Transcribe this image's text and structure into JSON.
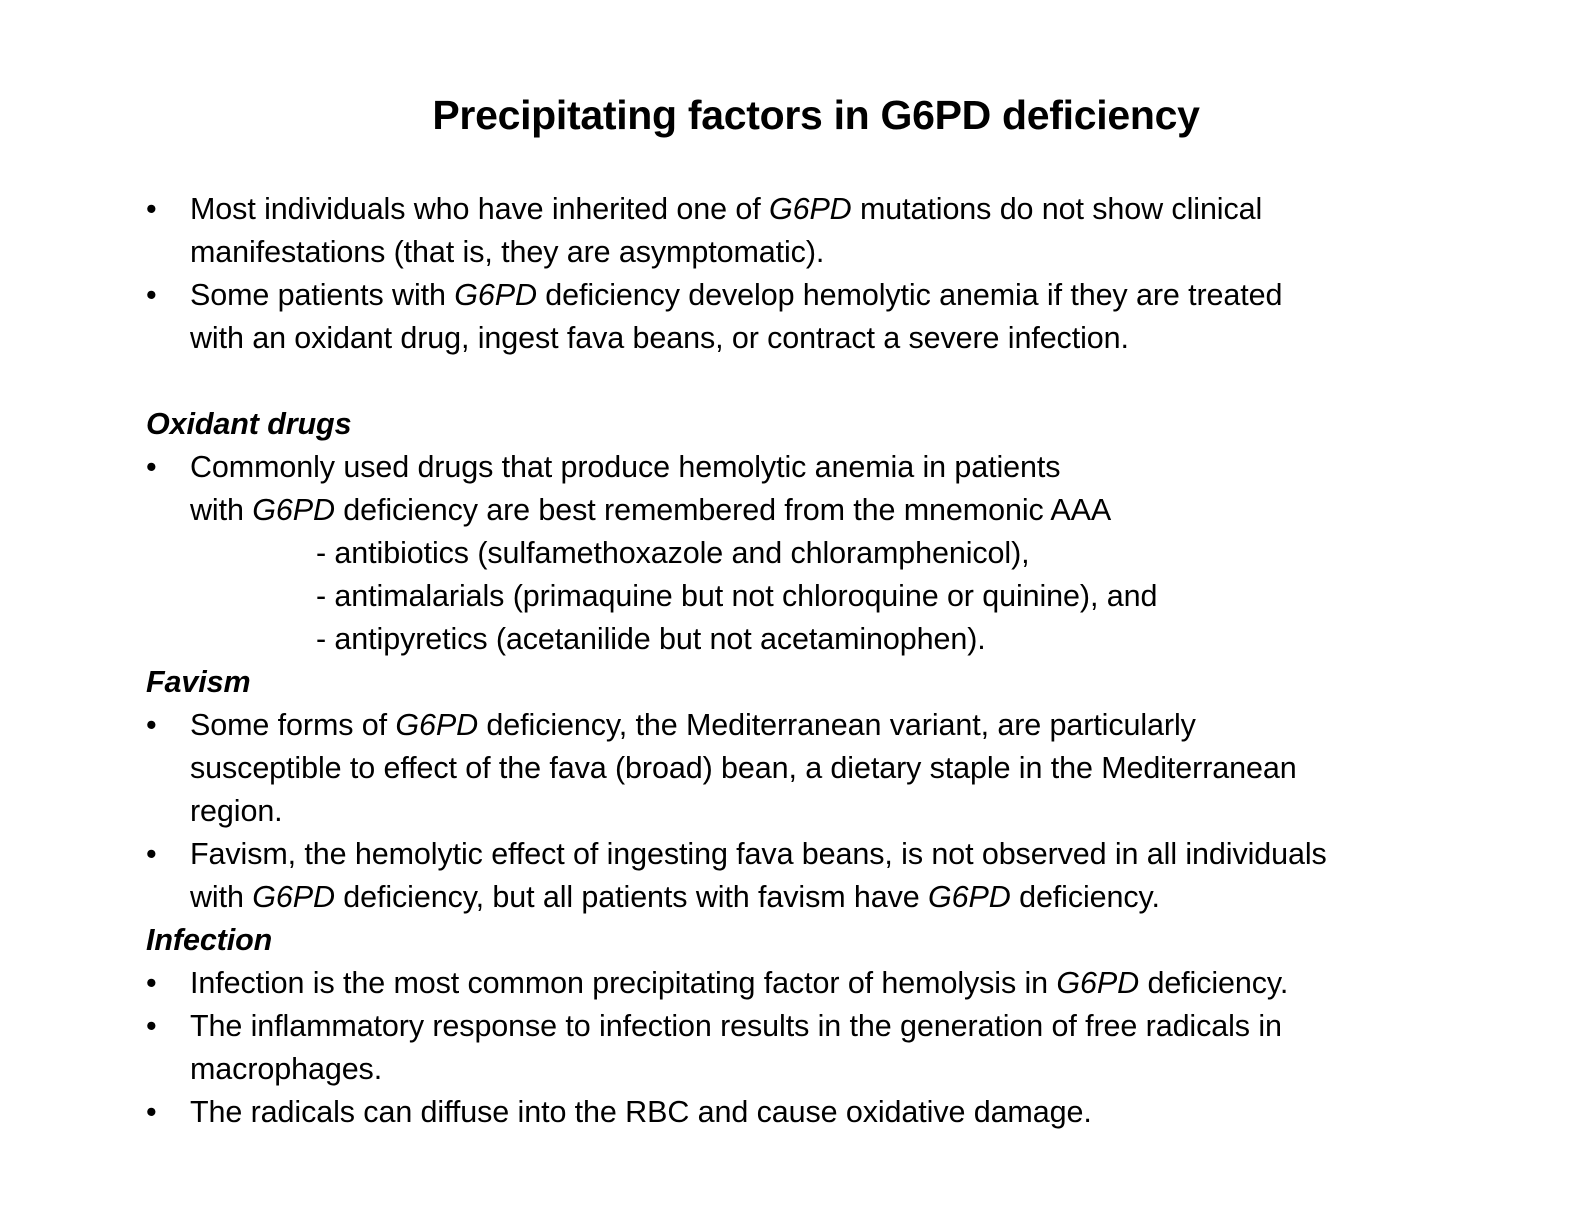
{
  "title": "Precipitating factors in G6PD deficiency",
  "intro": {
    "b1": {
      "pre": "Most individuals who have inherited one of ",
      "gene": "G6PD",
      "post": " mutations do not show clinical",
      "line2": "manifestations (that is, they are asymptomatic)."
    },
    "b2": {
      "pre": "Some patients with ",
      "gene": "G6PD",
      "post": " deficiency develop hemolytic anemia if they are treated",
      "line2": "with an oxidant drug, ingest fava beans, or contract a severe infection."
    }
  },
  "oxidant": {
    "heading": "Oxidant drugs",
    "b1": {
      "line1": "Commonly used drugs that produce hemolytic anemia in patients",
      "pre2": "with ",
      "gene": "G6PD",
      "post2": " deficiency are best remembered from the mnemonic AAA"
    },
    "items": [
      "- antibiotics (sulfamethoxazole and chloramphenicol),",
      "- antimalarials (primaquine but not chloroquine or quinine), and",
      "- antipyretics (acetanilide but not acetaminophen)."
    ]
  },
  "favism": {
    "heading": "Favism",
    "b1": {
      "pre": "Some forms of ",
      "gene": "G6PD",
      "post": " deficiency, the Mediterranean variant, are particularly",
      "line2": "susceptible to effect of the fava (broad) bean, a dietary staple in the Mediterranean",
      "line3": "region."
    },
    "b2": {
      "line1": "Favism, the hemolytic effect of ingesting fava beans, is not observed in all individuals",
      "pre2": "with ",
      "gene1": "G6PD",
      "mid2": " deficiency, but all patients with favism have ",
      "gene2": "G6PD",
      "post2": " deficiency."
    }
  },
  "infection": {
    "heading": "Infection",
    "b1": {
      "pre": "Infection is the most common precipitating factor of hemolysis in ",
      "gene": "G6PD",
      "post": " deficiency."
    },
    "b2": {
      "line1": "The inflammatory response to infection results in the generation of free radicals in",
      "line2": "macrophages."
    },
    "b3": {
      "line1": "The radicals can diffuse into the RBC and cause oxidative damage."
    }
  },
  "bullet_char": "•"
}
